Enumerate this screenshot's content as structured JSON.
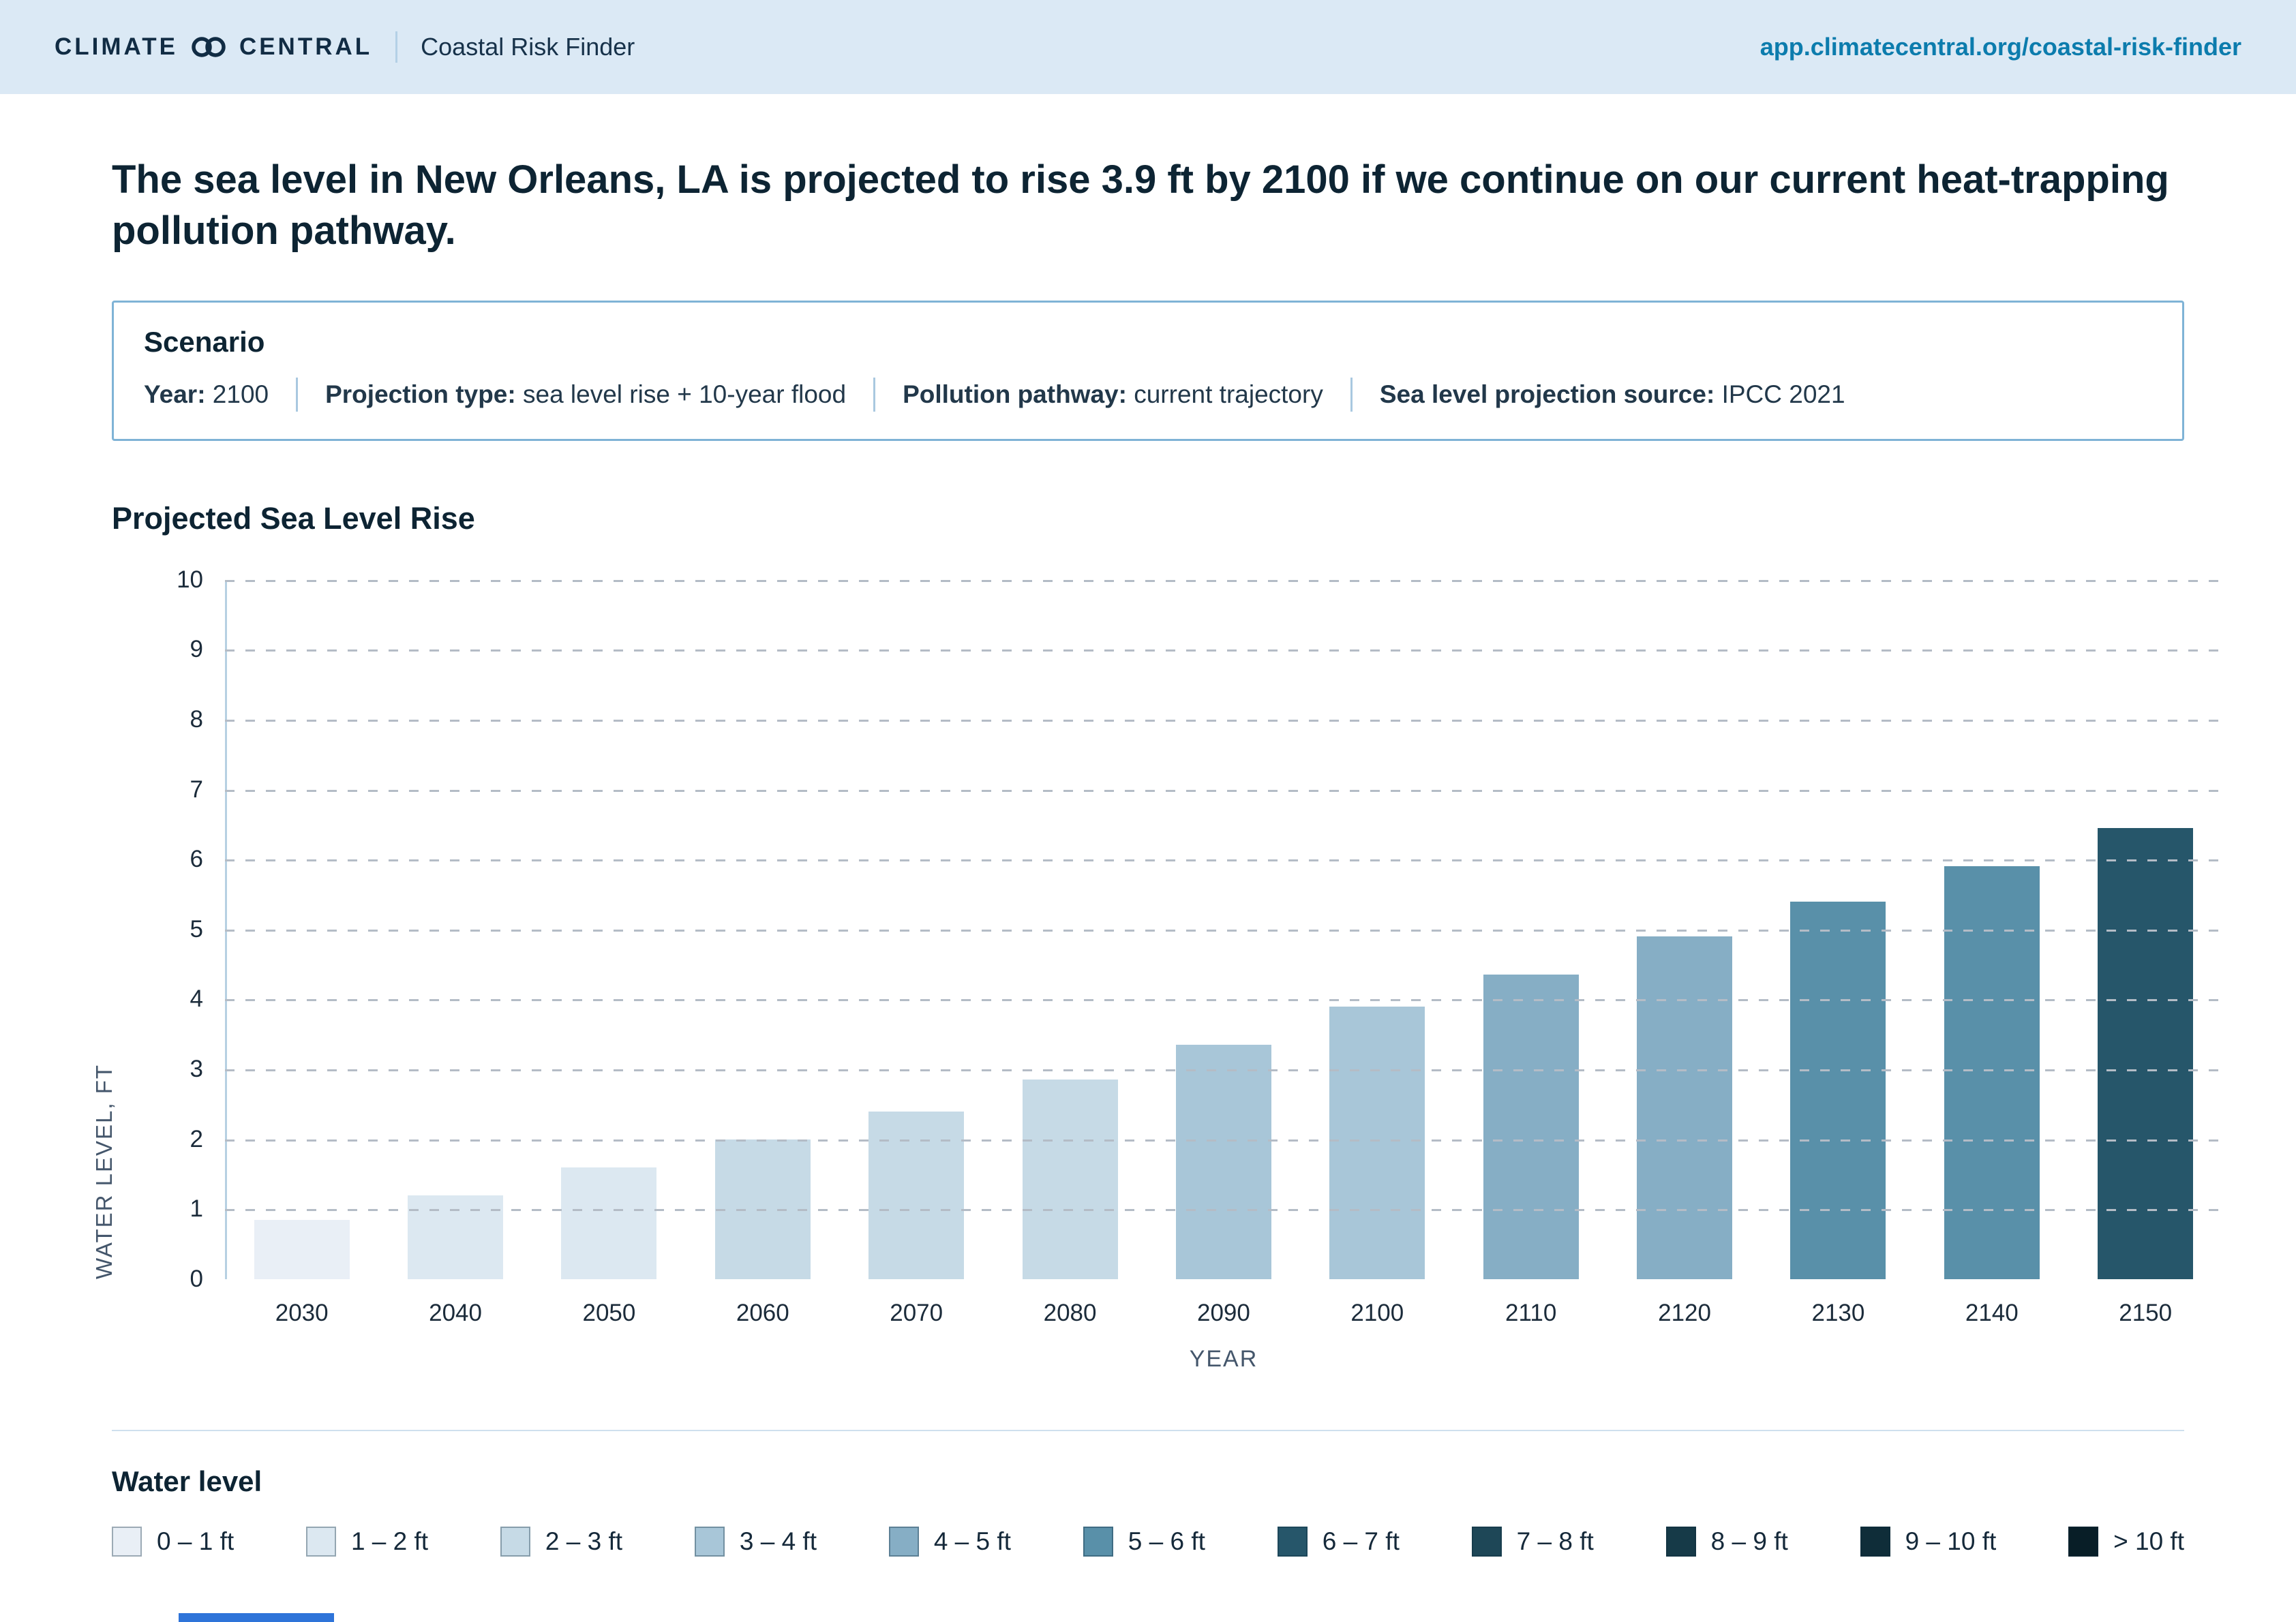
{
  "header": {
    "brand_left": "CLIMATE",
    "brand_right": "CENTRAL",
    "product": "Coastal Risk Finder",
    "url": "app.climatecentral.org/coastal-risk-finder"
  },
  "headline": "The sea level in New Orleans, LA is projected to rise 3.9 ft by 2100 if we continue on our current heat-trapping pollution pathway.",
  "scenario": {
    "title": "Scenario",
    "fields": [
      {
        "label": "Year:",
        "value": "2100"
      },
      {
        "label": "Projection type:",
        "value": "sea level rise + 10-year flood"
      },
      {
        "label": "Pollution pathway:",
        "value": "current trajectory"
      },
      {
        "label": "Sea level projection source:",
        "value": "IPCC 2021"
      }
    ]
  },
  "chart_data": {
    "type": "bar",
    "title": "Projected Sea Level Rise",
    "xlabel": "YEAR",
    "ylabel": "WATER LEVEL, FT",
    "ylim": [
      0,
      10
    ],
    "yticks": [
      0,
      1,
      2,
      3,
      4,
      5,
      6,
      7,
      8,
      9,
      10
    ],
    "grid": "dashed horizontal gridlines at each foot",
    "categories": [
      "2030",
      "2040",
      "2050",
      "2060",
      "2070",
      "2080",
      "2090",
      "2100",
      "2110",
      "2120",
      "2130",
      "2140",
      "2150"
    ],
    "values": [
      0.85,
      1.2,
      1.6,
      2.0,
      2.4,
      2.85,
      3.35,
      3.9,
      4.35,
      4.9,
      5.4,
      5.9,
      6.45
    ],
    "color_rule": "bar fill = legend bucket containing value (floor of feet)"
  },
  "legend": {
    "title": "Water level",
    "items": [
      {
        "label": "0 – 1 ft",
        "color": "#e9eff6"
      },
      {
        "label": "1 – 2 ft",
        "color": "#dce8f1"
      },
      {
        "label": "2 – 3 ft",
        "color": "#c6dae6"
      },
      {
        "label": "3 – 4 ft",
        "color": "#a8c6d8"
      },
      {
        "label": "4 – 5 ft",
        "color": "#86aec5"
      },
      {
        "label": "5 – 6 ft",
        "color": "#5990a9"
      },
      {
        "label": "6 – 7 ft",
        "color": "#26566a"
      },
      {
        "label": "7 – 8 ft",
        "color": "#1e4757"
      },
      {
        "label": "8 – 9 ft",
        "color": "#163a48"
      },
      {
        "label": "9 – 10 ft",
        "color": "#0f2d39"
      },
      {
        "label": "> 10 ft",
        "color": "#081e27"
      }
    ]
  }
}
